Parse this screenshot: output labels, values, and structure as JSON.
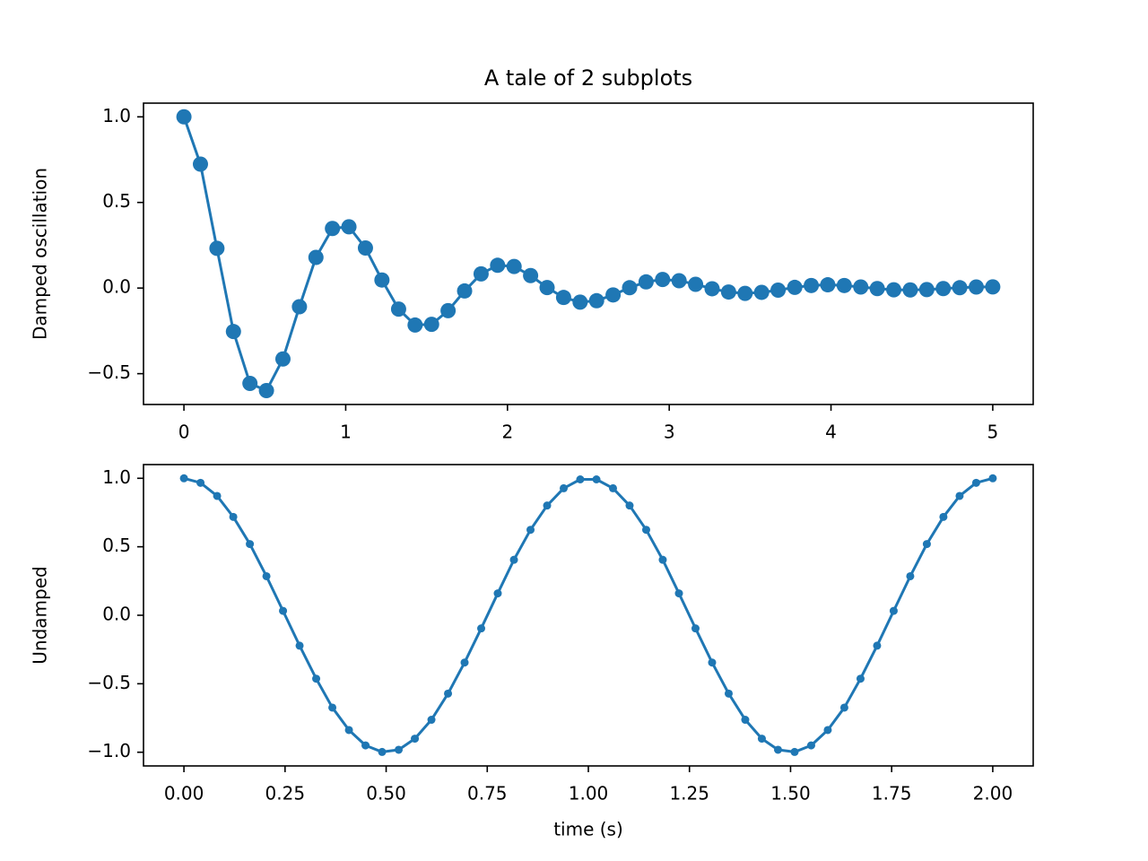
{
  "chart_data": [
    {
      "type": "line",
      "title": "A tale of 2 subplots",
      "y_label": "Damped oscillation",
      "marker": "o",
      "x": [
        0,
        0.102,
        0.204,
        0.306,
        0.408,
        0.51,
        0.612,
        0.714,
        0.816,
        0.918,
        1.02,
        1.122,
        1.224,
        1.327,
        1.429,
        1.531,
        1.633,
        1.735,
        1.837,
        1.939,
        2.041,
        2.143,
        2.245,
        2.347,
        2.449,
        2.551,
        2.653,
        2.755,
        2.857,
        2.959,
        3.061,
        3.163,
        3.265,
        3.367,
        3.469,
        3.571,
        3.673,
        3.776,
        3.878,
        3.98,
        4.082,
        4.184,
        4.286,
        4.388,
        4.49,
        4.592,
        4.694,
        4.796,
        4.898,
        5
      ],
      "series": [
        {
          "color": "#1f77b4",
          "values": [
            1,
            0.724,
            0.232,
            -0.254,
            -0.557,
            -0.599,
            -0.414,
            -0.109,
            0.179,
            0.348,
            0.358,
            0.234,
            0.047,
            -0.123,
            -0.216,
            -0.212,
            -0.132,
            -0.017,
            0.083,
            0.133,
            0.126,
            0.073,
            0.003,
            -0.055,
            -0.082,
            -0.074,
            -0.04,
            0.002,
            0.036,
            0.05,
            0.043,
            0.022,
            -0.004,
            -0.023,
            -0.031,
            -0.025,
            -0.012,
            0.004,
            0.015,
            0.019,
            0.015,
            0.006,
            -0.003,
            -0.01,
            -0.011,
            -0.009,
            -0.003,
            0.002,
            0.006,
            0.007
          ]
        }
      ],
      "xlim": [
        -0.25,
        5.25
      ],
      "xticks": [
        0,
        1,
        2,
        3,
        4,
        5
      ],
      "ylim": [
        -0.68,
        1.08
      ],
      "yticks": [
        {
          "value": -0.5,
          "label": "−0.5"
        },
        {
          "value": 0,
          "label": "0.0"
        },
        {
          "value": 0.5,
          "label": "0.5"
        },
        {
          "value": 1,
          "label": "1.0"
        }
      ],
      "grid": false
    },
    {
      "type": "line",
      "x_label": "time (s)",
      "y_label": "Undamped",
      "marker": ".",
      "x": [
        0,
        0.041,
        0.082,
        0.122,
        0.163,
        0.204,
        0.245,
        0.286,
        0.327,
        0.367,
        0.408,
        0.449,
        0.49,
        0.531,
        0.571,
        0.612,
        0.653,
        0.694,
        0.735,
        0.776,
        0.816,
        0.857,
        0.898,
        0.939,
        0.98,
        1.02,
        1.061,
        1.102,
        1.143,
        1.184,
        1.224,
        1.265,
        1.306,
        1.347,
        1.388,
        1.429,
        1.469,
        1.51,
        1.551,
        1.592,
        1.633,
        1.673,
        1.714,
        1.755,
        1.796,
        1.837,
        1.878,
        1.918,
        1.959,
        2
      ],
      "series": [
        {
          "color": "#1f77b4",
          "values": [
            1,
            0.967,
            0.871,
            0.718,
            0.52,
            0.285,
            0.032,
            -0.222,
            -0.463,
            -0.674,
            -0.838,
            -0.95,
            -0.998,
            -0.982,
            -0.901,
            -0.763,
            -0.572,
            -0.345,
            -0.096,
            0.16,
            0.405,
            0.624,
            0.801,
            0.927,
            0.992,
            0.992,
            0.927,
            0.801,
            0.624,
            0.405,
            0.16,
            -0.096,
            -0.345,
            -0.572,
            -0.763,
            -0.901,
            -0.982,
            -0.998,
            -0.95,
            -0.838,
            -0.674,
            -0.463,
            -0.222,
            0.032,
            0.285,
            0.52,
            0.718,
            0.871,
            0.967,
            1
          ]
        }
      ],
      "xlim": [
        -0.1,
        2.1
      ],
      "xticks": [
        {
          "value": 0,
          "label": "0.00"
        },
        {
          "value": 0.25,
          "label": "0.25"
        },
        {
          "value": 0.5,
          "label": "0.50"
        },
        {
          "value": 0.75,
          "label": "0.75"
        },
        {
          "value": 1,
          "label": "1.00"
        },
        {
          "value": 1.25,
          "label": "1.25"
        },
        {
          "value": 1.5,
          "label": "1.50"
        },
        {
          "value": 1.75,
          "label": "1.75"
        },
        {
          "value": 2,
          "label": "2.00"
        }
      ],
      "ylim": [
        -1.1,
        1.1
      ],
      "yticks": [
        {
          "value": -1,
          "label": "−1.0"
        },
        {
          "value": -0.5,
          "label": "−0.5"
        },
        {
          "value": 0,
          "label": "0.0"
        },
        {
          "value": 0.5,
          "label": "0.5"
        },
        {
          "value": 1,
          "label": "1.0"
        }
      ],
      "grid": false
    }
  ]
}
